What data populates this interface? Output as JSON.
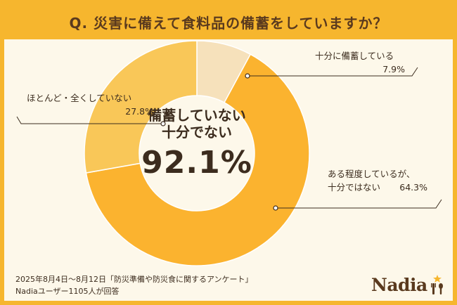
{
  "title": "Q. 災害に備えて食料品の備蓄をしていますか？",
  "center": {
    "line1": "備蓄していない",
    "line2": "十分でない",
    "value": "92.1%"
  },
  "footnote": {
    "line1": "2025年8月4日〜8月12日「防災準備や防災食に関するアンケート」",
    "line2": "Nadiaユーザー1105人が回答"
  },
  "logo": {
    "text": "Nadia"
  },
  "colors": {
    "background": "#fdf8ea",
    "header": "#f6b62e",
    "title_text": "#5a3a1e",
    "slice_enough": "#f6e1bb",
    "slice_not_enough": "#fbb32f",
    "slice_none": "#f9c758",
    "leader": "#3c2c1e"
  },
  "chart_data": {
    "type": "pie",
    "donut": true,
    "title": "Q. 災害に備えて食料品の備蓄をしていますか？",
    "unit": "%",
    "slices": [
      {
        "label": "十分に備蓄している",
        "value": 7.9,
        "value_label": "7.9%",
        "color": "#f6e1bb"
      },
      {
        "label": "ある程度しているが、十分ではない",
        "value": 64.3,
        "value_label": "64.3%",
        "color": "#fbb32f"
      },
      {
        "label": "ほとんど・全くしていない",
        "value": 27.8,
        "value_label": "27.8%",
        "color": "#f9c758"
      }
    ],
    "start_angle_deg": 0,
    "direction": "clockwise",
    "center_label": [
      "備蓄していない",
      "十分でない",
      "92.1%"
    ]
  }
}
